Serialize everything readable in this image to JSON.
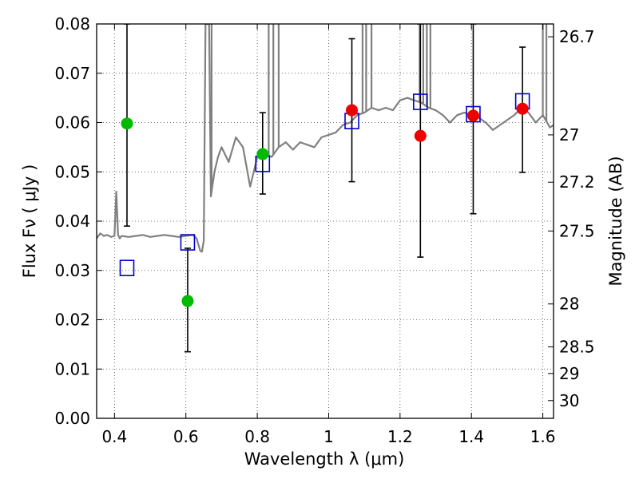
{
  "chart_data": {
    "type": "scatter",
    "xlabel": "Wavelength  λ (μm)",
    "ylabel": "Flux  Fν  ( μJy )",
    "ylabel_right": "Magnitude (AB)",
    "xlim": [
      0.35,
      1.63
    ],
    "ylim": [
      0.0,
      0.08
    ],
    "grid": true,
    "x_ticks": [
      "0.4",
      "0.6",
      "0.8",
      "1",
      "1.2",
      "1.4",
      "1.6"
    ],
    "x_tick_values": [
      0.4,
      0.6,
      0.8,
      1.0,
      1.2,
      1.4,
      1.6
    ],
    "y_ticks": [
      "0.00",
      "0.01",
      "0.02",
      "0.03",
      "0.04",
      "0.05",
      "0.06",
      "0.07",
      "0.08"
    ],
    "y_tick_values": [
      0.0,
      0.01,
      0.02,
      0.03,
      0.04,
      0.05,
      0.06,
      0.07,
      0.08
    ],
    "right_ticks": [
      "26.7",
      "27",
      "27.2",
      "27.5",
      "28",
      "28.5",
      "29",
      "30"
    ],
    "right_tick_flux": [
      0.0774,
      0.0575,
      0.0479,
      0.038,
      0.0232,
      0.0145,
      0.0091,
      0.0036
    ],
    "colors": {
      "model": "#808080",
      "green": "#00bb00",
      "red": "#ee0000",
      "square": "#0000cc",
      "errorbar": "#000000",
      "grid": "#444444"
    },
    "series": [
      {
        "marker": "square",
        "points": [
          {
            "x": 0.435,
            "y": 0.0305
          },
          {
            "x": 0.605,
            "y": 0.0357
          },
          {
            "x": 0.815,
            "y": 0.0516
          },
          {
            "x": 1.065,
            "y": 0.0603
          },
          {
            "x": 1.257,
            "y": 0.0642
          },
          {
            "x": 1.405,
            "y": 0.0617
          },
          {
            "x": 1.543,
            "y": 0.0643
          }
        ]
      },
      {
        "marker": "circle-green",
        "points": [
          {
            "x": 0.435,
            "y": 0.0598,
            "lo": 0.039,
            "hi": 0.08
          },
          {
            "x": 0.605,
            "y": 0.0238,
            "lo": 0.0135,
            "hi": 0.0345
          },
          {
            "x": 0.815,
            "y": 0.0536,
            "lo": 0.0455,
            "hi": 0.062
          }
        ]
      },
      {
        "marker": "circle-red",
        "points": [
          {
            "x": 1.065,
            "y": 0.0625,
            "lo": 0.048,
            "hi": 0.077
          },
          {
            "x": 1.257,
            "y": 0.0573,
            "lo": 0.0327,
            "hi": 0.08
          },
          {
            "x": 1.405,
            "y": 0.0614,
            "lo": 0.0415,
            "hi": 0.08
          },
          {
            "x": 1.543,
            "y": 0.0628,
            "lo": 0.0499,
            "hi": 0.0753
          }
        ]
      }
    ],
    "model_spectrum": {
      "x": [
        0.35,
        0.36,
        0.37,
        0.38,
        0.39,
        0.4,
        0.405,
        0.41,
        0.415,
        0.42,
        0.44,
        0.46,
        0.48,
        0.5,
        0.52,
        0.54,
        0.56,
        0.58,
        0.6,
        0.62,
        0.63,
        0.64,
        0.645,
        0.65,
        0.655,
        0.66,
        0.665,
        0.67,
        0.68,
        0.69,
        0.7,
        0.72,
        0.74,
        0.76,
        0.78,
        0.8,
        0.82,
        0.84,
        0.86,
        0.88,
        0.9,
        0.92,
        0.94,
        0.96,
        0.98,
        1.0,
        1.02,
        1.04,
        1.06,
        1.08,
        1.1,
        1.12,
        1.14,
        1.16,
        1.18,
        1.2,
        1.22,
        1.24,
        1.26,
        1.28,
        1.3,
        1.32,
        1.34,
        1.36,
        1.38,
        1.4,
        1.42,
        1.44,
        1.46,
        1.48,
        1.5,
        1.52,
        1.54,
        1.56,
        1.58,
        1.6,
        1.62,
        1.63
      ],
      "y": [
        0.0365,
        0.0375,
        0.037,
        0.0372,
        0.0368,
        0.037,
        0.046,
        0.0372,
        0.0365,
        0.037,
        0.0368,
        0.037,
        0.0372,
        0.0368,
        0.037,
        0.0372,
        0.037,
        0.0368,
        0.037,
        0.0372,
        0.0365,
        0.034,
        0.0338,
        0.036,
        0.08,
        0.08,
        0.08,
        0.045,
        0.05,
        0.053,
        0.055,
        0.052,
        0.057,
        0.055,
        0.047,
        0.053,
        0.054,
        0.053,
        0.055,
        0.056,
        0.0545,
        0.056,
        0.0555,
        0.055,
        0.057,
        0.0575,
        0.058,
        0.0595,
        0.06,
        0.0615,
        0.062,
        0.063,
        0.0625,
        0.063,
        0.0625,
        0.0645,
        0.065,
        0.0645,
        0.064,
        0.063,
        0.0625,
        0.0615,
        0.06,
        0.0615,
        0.062,
        0.0615,
        0.061,
        0.06,
        0.0585,
        0.0595,
        0.0605,
        0.0615,
        0.063,
        0.062,
        0.06,
        0.0615,
        0.059,
        0.0595
      ]
    },
    "emission_lines": [
      0.658,
      0.665,
      0.672,
      0.832,
      0.845,
      0.86,
      1.095,
      1.105,
      1.12,
      1.255,
      1.265,
      1.275,
      1.285,
      1.6,
      1.61
    ]
  }
}
